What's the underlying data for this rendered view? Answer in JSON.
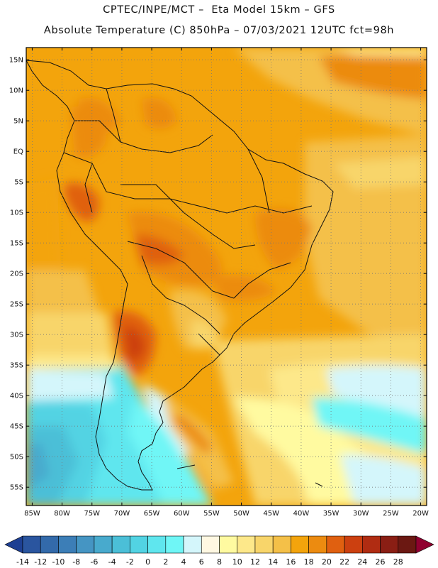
{
  "header": {
    "line1": "CPTEC/INPE/MCT –  Eta Model 15km – GFS",
    "line2": "Absolute Temperature (C) 850hPa – 07/03/2021 12UTC fct=98h"
  },
  "map": {
    "lon_range": [
      -86,
      -19
    ],
    "lat_range": [
      -58,
      17
    ],
    "lat_labels": [
      {
        "lat": 15,
        "text": "15N"
      },
      {
        "lat": 10,
        "text": "10N"
      },
      {
        "lat": 5,
        "text": "5N"
      },
      {
        "lat": 0,
        "text": "EQ"
      },
      {
        "lat": -5,
        "text": "5S"
      },
      {
        "lat": -10,
        "text": "10S"
      },
      {
        "lat": -15,
        "text": "15S"
      },
      {
        "lat": -20,
        "text": "20S"
      },
      {
        "lat": -25,
        "text": "25S"
      },
      {
        "lat": -30,
        "text": "30S"
      },
      {
        "lat": -35,
        "text": "35S"
      },
      {
        "lat": -40,
        "text": "40S"
      },
      {
        "lat": -45,
        "text": "45S"
      },
      {
        "lat": -50,
        "text": "50S"
      },
      {
        "lat": -55,
        "text": "55S"
      }
    ],
    "lon_labels": [
      {
        "lon": -85,
        "text": "85W"
      },
      {
        "lon": -80,
        "text": "80W"
      },
      {
        "lon": -75,
        "text": "75W"
      },
      {
        "lon": -70,
        "text": "70W"
      },
      {
        "lon": -65,
        "text": "65W"
      },
      {
        "lon": -60,
        "text": "60W"
      },
      {
        "lon": -55,
        "text": "55W"
      },
      {
        "lon": -50,
        "text": "50W"
      },
      {
        "lon": -45,
        "text": "45W"
      },
      {
        "lon": -40,
        "text": "40W"
      },
      {
        "lon": -35,
        "text": "35W"
      },
      {
        "lon": -30,
        "text": "30W"
      },
      {
        "lon": -25,
        "text": "25W"
      },
      {
        "lon": -20,
        "text": "20W"
      }
    ]
  },
  "colorbar": {
    "labels": [
      "-14",
      "-12",
      "-10",
      "-8",
      "-6",
      "-4",
      "-2",
      "0",
      "2",
      "4",
      "6",
      "8",
      "10",
      "12",
      "14",
      "16",
      "18",
      "20",
      "22",
      "24",
      "26",
      "28"
    ],
    "colors": [
      "#1d3f93",
      "#2a559f",
      "#336aaa",
      "#3c7eb7",
      "#4595c3",
      "#48aacd",
      "#4bbfd7",
      "#52d3e3",
      "#5fe6ee",
      "#6ff6f6",
      "#d4f6fb",
      "#fff8e2",
      "#fffaa0",
      "#fde88a",
      "#f8d56a",
      "#f4c048",
      "#f3a40c",
      "#ec8b10",
      "#e06010",
      "#cc4010",
      "#b02c12",
      "#8a1e14",
      "#6b1812",
      "#900030"
    ]
  }
}
